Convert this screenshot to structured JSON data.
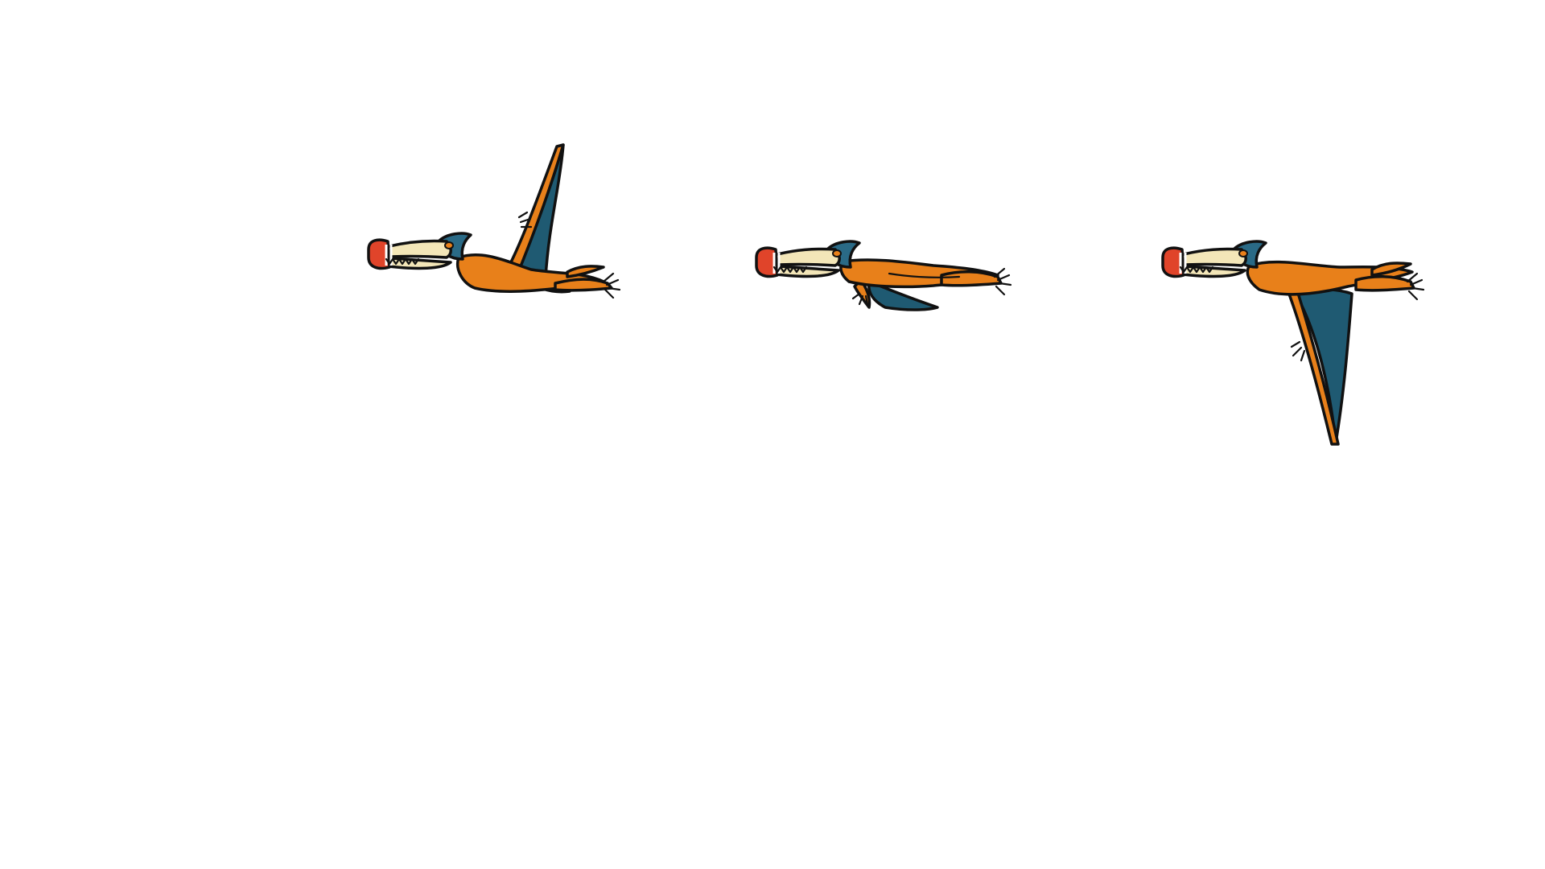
{
  "scene": {
    "background": "#ffffff",
    "subject": "pterosaur",
    "frames": [
      {
        "pose": "wings-up"
      },
      {
        "pose": "wings-level"
      },
      {
        "pose": "wings-down"
      }
    ]
  },
  "palette": {
    "body_orange": "#e8801a",
    "wing_teal": "#1f5a72",
    "crest_teal": "#2a6a86",
    "beak_cream": "#f3e6b8",
    "beak_tip_red": "#e0442a",
    "outline": "#111111"
  }
}
